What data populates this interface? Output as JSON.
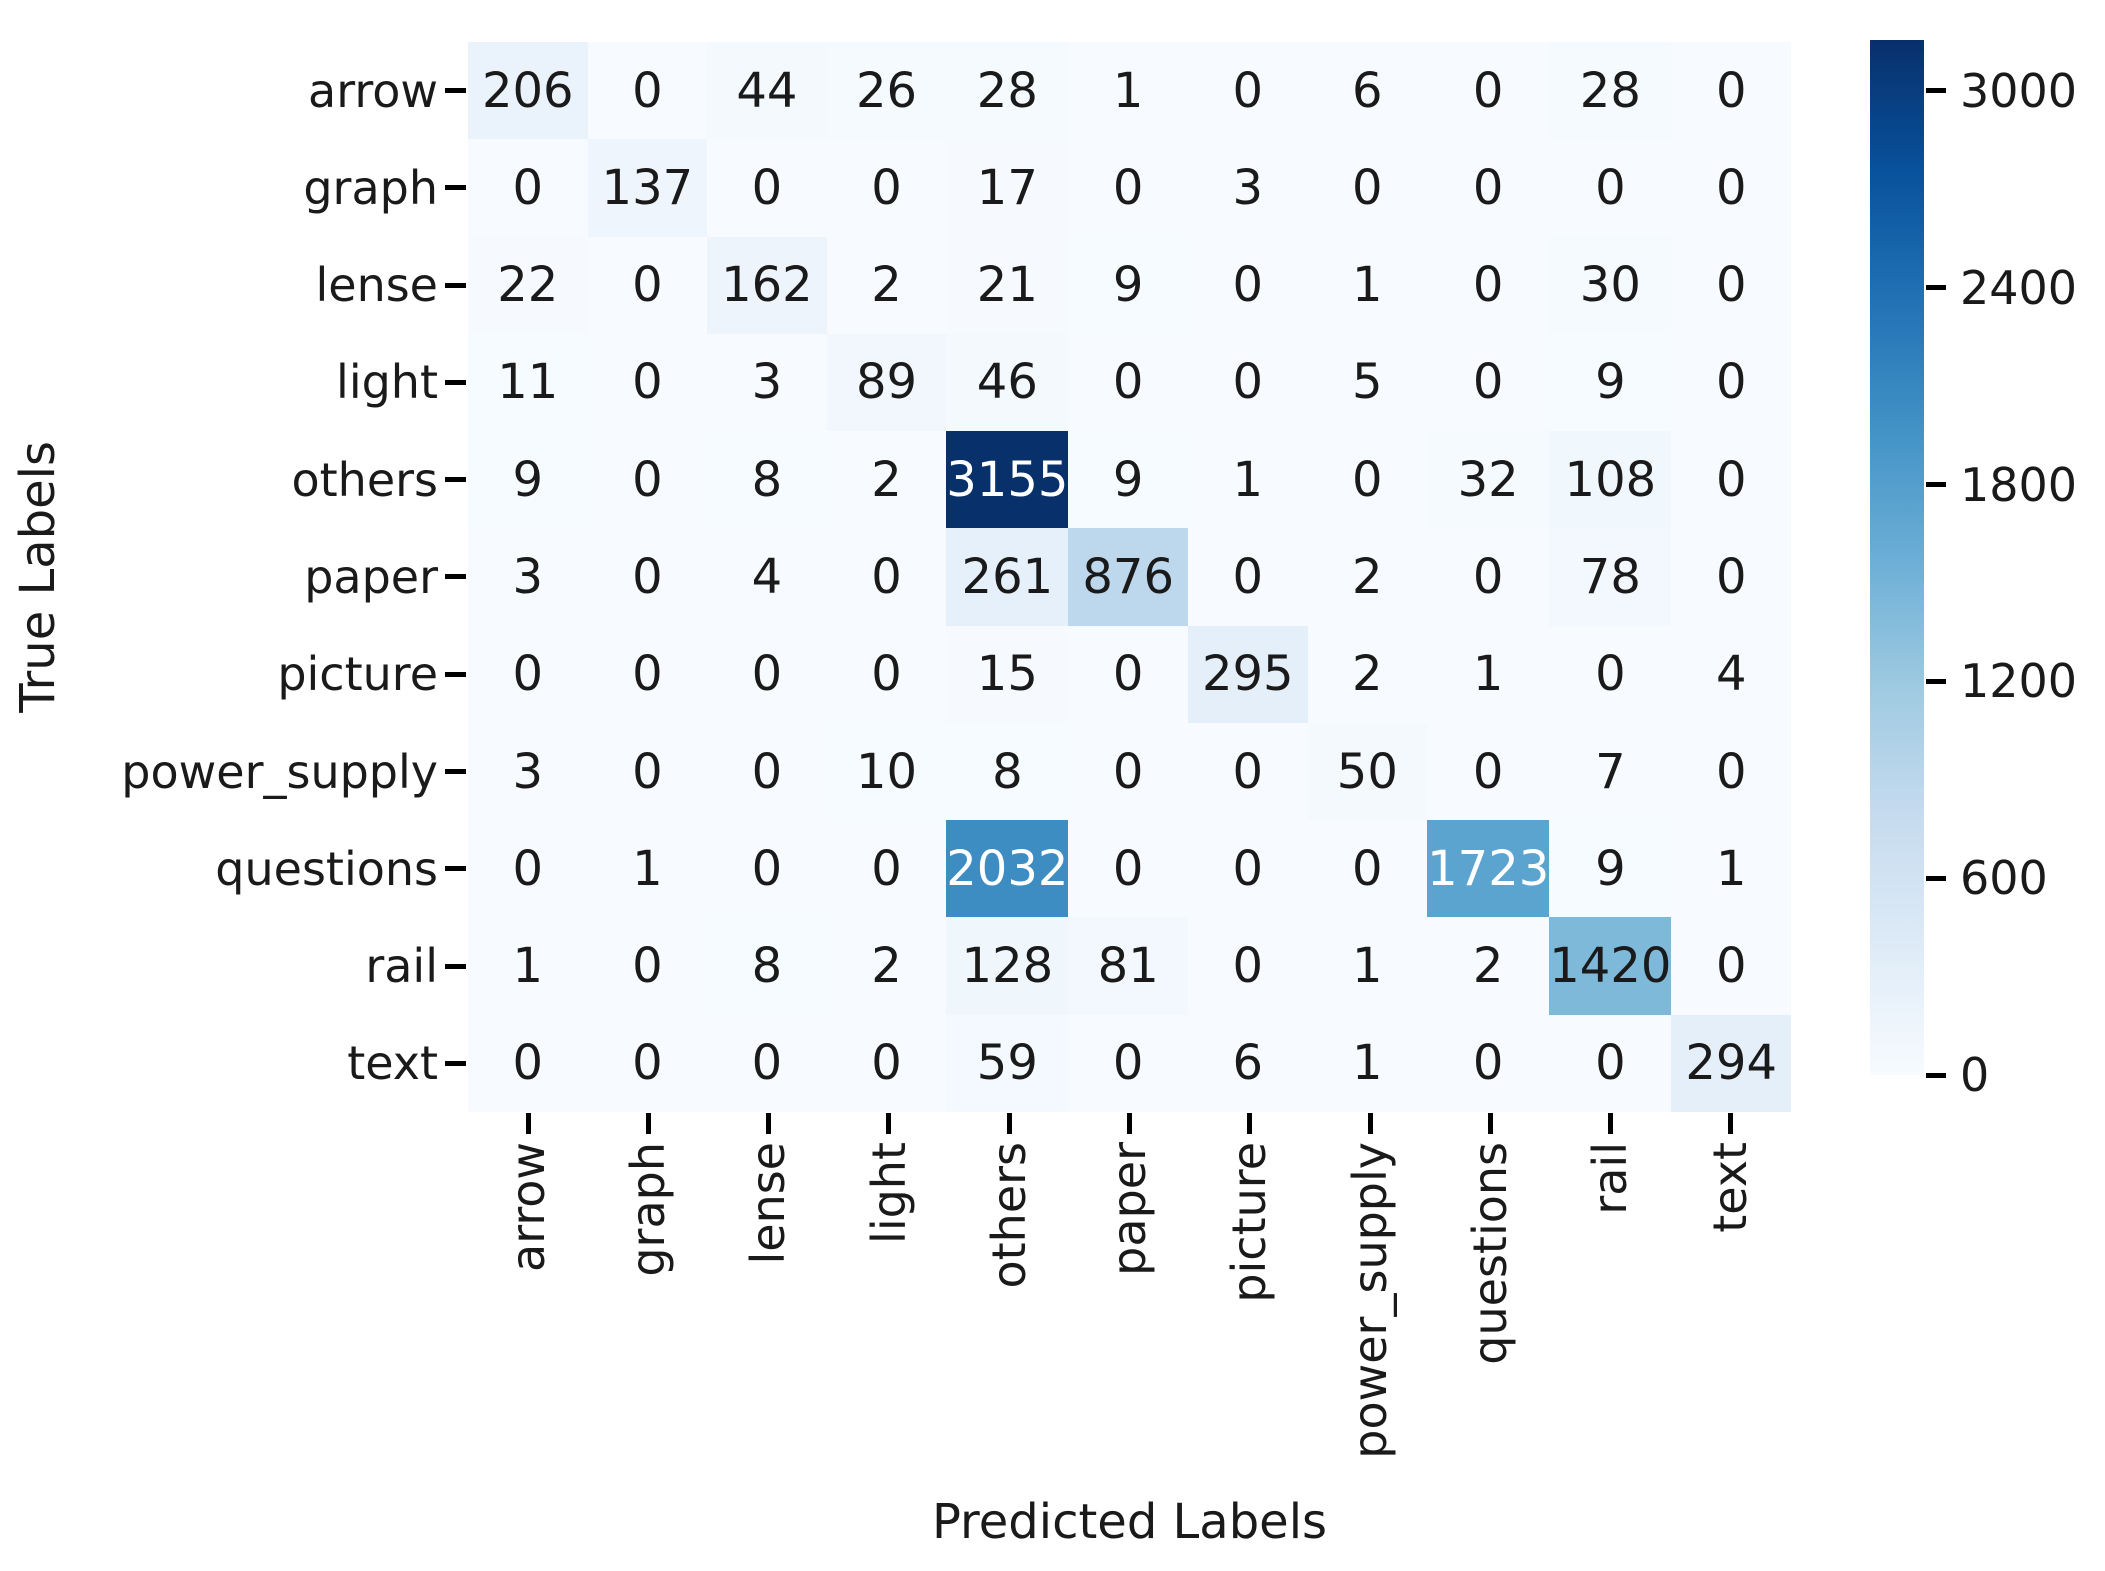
{
  "chart_data": {
    "type": "heatmap",
    "xlabel": "Predicted Labels",
    "ylabel": "True Labels",
    "categories": [
      "arrow",
      "graph",
      "lense",
      "light",
      "others",
      "paper",
      "picture",
      "power_supply",
      "questions",
      "rail",
      "text"
    ],
    "matrix": [
      [
        206,
        0,
        44,
        26,
        28,
        1,
        0,
        6,
        0,
        28,
        0
      ],
      [
        0,
        137,
        0,
        0,
        17,
        0,
        3,
        0,
        0,
        0,
        0
      ],
      [
        22,
        0,
        162,
        2,
        21,
        9,
        0,
        1,
        0,
        30,
        0
      ],
      [
        11,
        0,
        3,
        89,
        46,
        0,
        0,
        5,
        0,
        9,
        0
      ],
      [
        9,
        0,
        8,
        2,
        3155,
        9,
        1,
        0,
        32,
        108,
        0
      ],
      [
        3,
        0,
        4,
        0,
        261,
        876,
        0,
        2,
        0,
        78,
        0
      ],
      [
        0,
        0,
        0,
        0,
        15,
        0,
        295,
        2,
        1,
        0,
        4
      ],
      [
        3,
        0,
        0,
        10,
        8,
        0,
        0,
        50,
        0,
        7,
        0
      ],
      [
        0,
        1,
        0,
        0,
        2032,
        0,
        0,
        0,
        1723,
        9,
        1
      ],
      [
        1,
        0,
        8,
        2,
        128,
        81,
        0,
        1,
        2,
        1420,
        0
      ],
      [
        0,
        0,
        0,
        0,
        59,
        0,
        6,
        1,
        0,
        0,
        294
      ]
    ],
    "vmin": 0,
    "vmax": 3155,
    "colormap": "Blues",
    "colorbar_ticks": [
      3000,
      2400,
      1800,
      1200,
      600,
      0
    ],
    "colorbar_position": "right",
    "grid": false,
    "colors": {
      "background": "#ffffff",
      "annotation_dark_text": "#1a1a1a",
      "annotation_light_text": "#ffffff",
      "tick_color": "#000000",
      "cmap_low": "#f7fbff",
      "cmap_high": "#08306b"
    }
  }
}
